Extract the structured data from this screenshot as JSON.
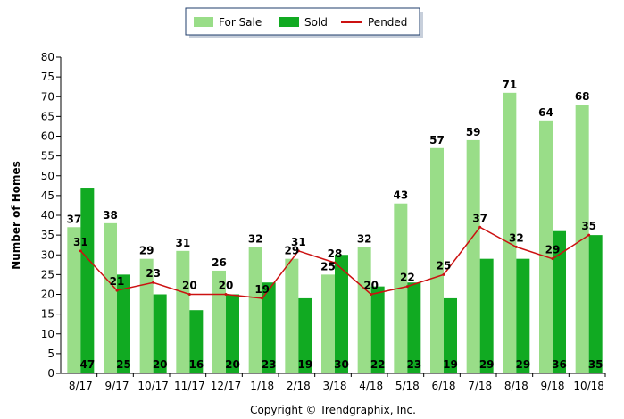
{
  "chart_data": {
    "type": "bar",
    "ylabel": "Number of Homes",
    "ylim": [
      0,
      80
    ],
    "yticks": [
      "0",
      "5",
      "10",
      "15",
      "20",
      "25",
      "30",
      "35",
      "40",
      "45",
      "50",
      "55",
      "60",
      "65",
      "70",
      "75",
      "80"
    ],
    "categories": [
      "8/17",
      "9/17",
      "10/17",
      "11/17",
      "12/17",
      "1/18",
      "2/18",
      "3/18",
      "4/18",
      "5/18",
      "6/18",
      "7/18",
      "8/18",
      "9/18",
      "10/18"
    ],
    "series": [
      {
        "name": "For Sale",
        "kind": "bar",
        "color": "#99dd88",
        "values": [
          37,
          38,
          29,
          31,
          26,
          32,
          29,
          25,
          32,
          43,
          57,
          59,
          71,
          64,
          68
        ]
      },
      {
        "name": "Sold",
        "kind": "bar",
        "color": "#11aa22",
        "values": [
          47,
          25,
          20,
          16,
          20,
          23,
          19,
          30,
          22,
          23,
          19,
          29,
          29,
          36,
          35
        ]
      },
      {
        "name": "Pended",
        "kind": "line",
        "color": "#cc1111",
        "values": [
          31,
          21,
          23,
          20,
          20,
          19,
          31,
          28,
          20,
          22,
          25,
          37,
          32,
          29,
          35
        ]
      }
    ],
    "legend_position": "top-center",
    "grid": false
  },
  "footer": {
    "text": "Copyright © Trendgraphix, Inc."
  }
}
